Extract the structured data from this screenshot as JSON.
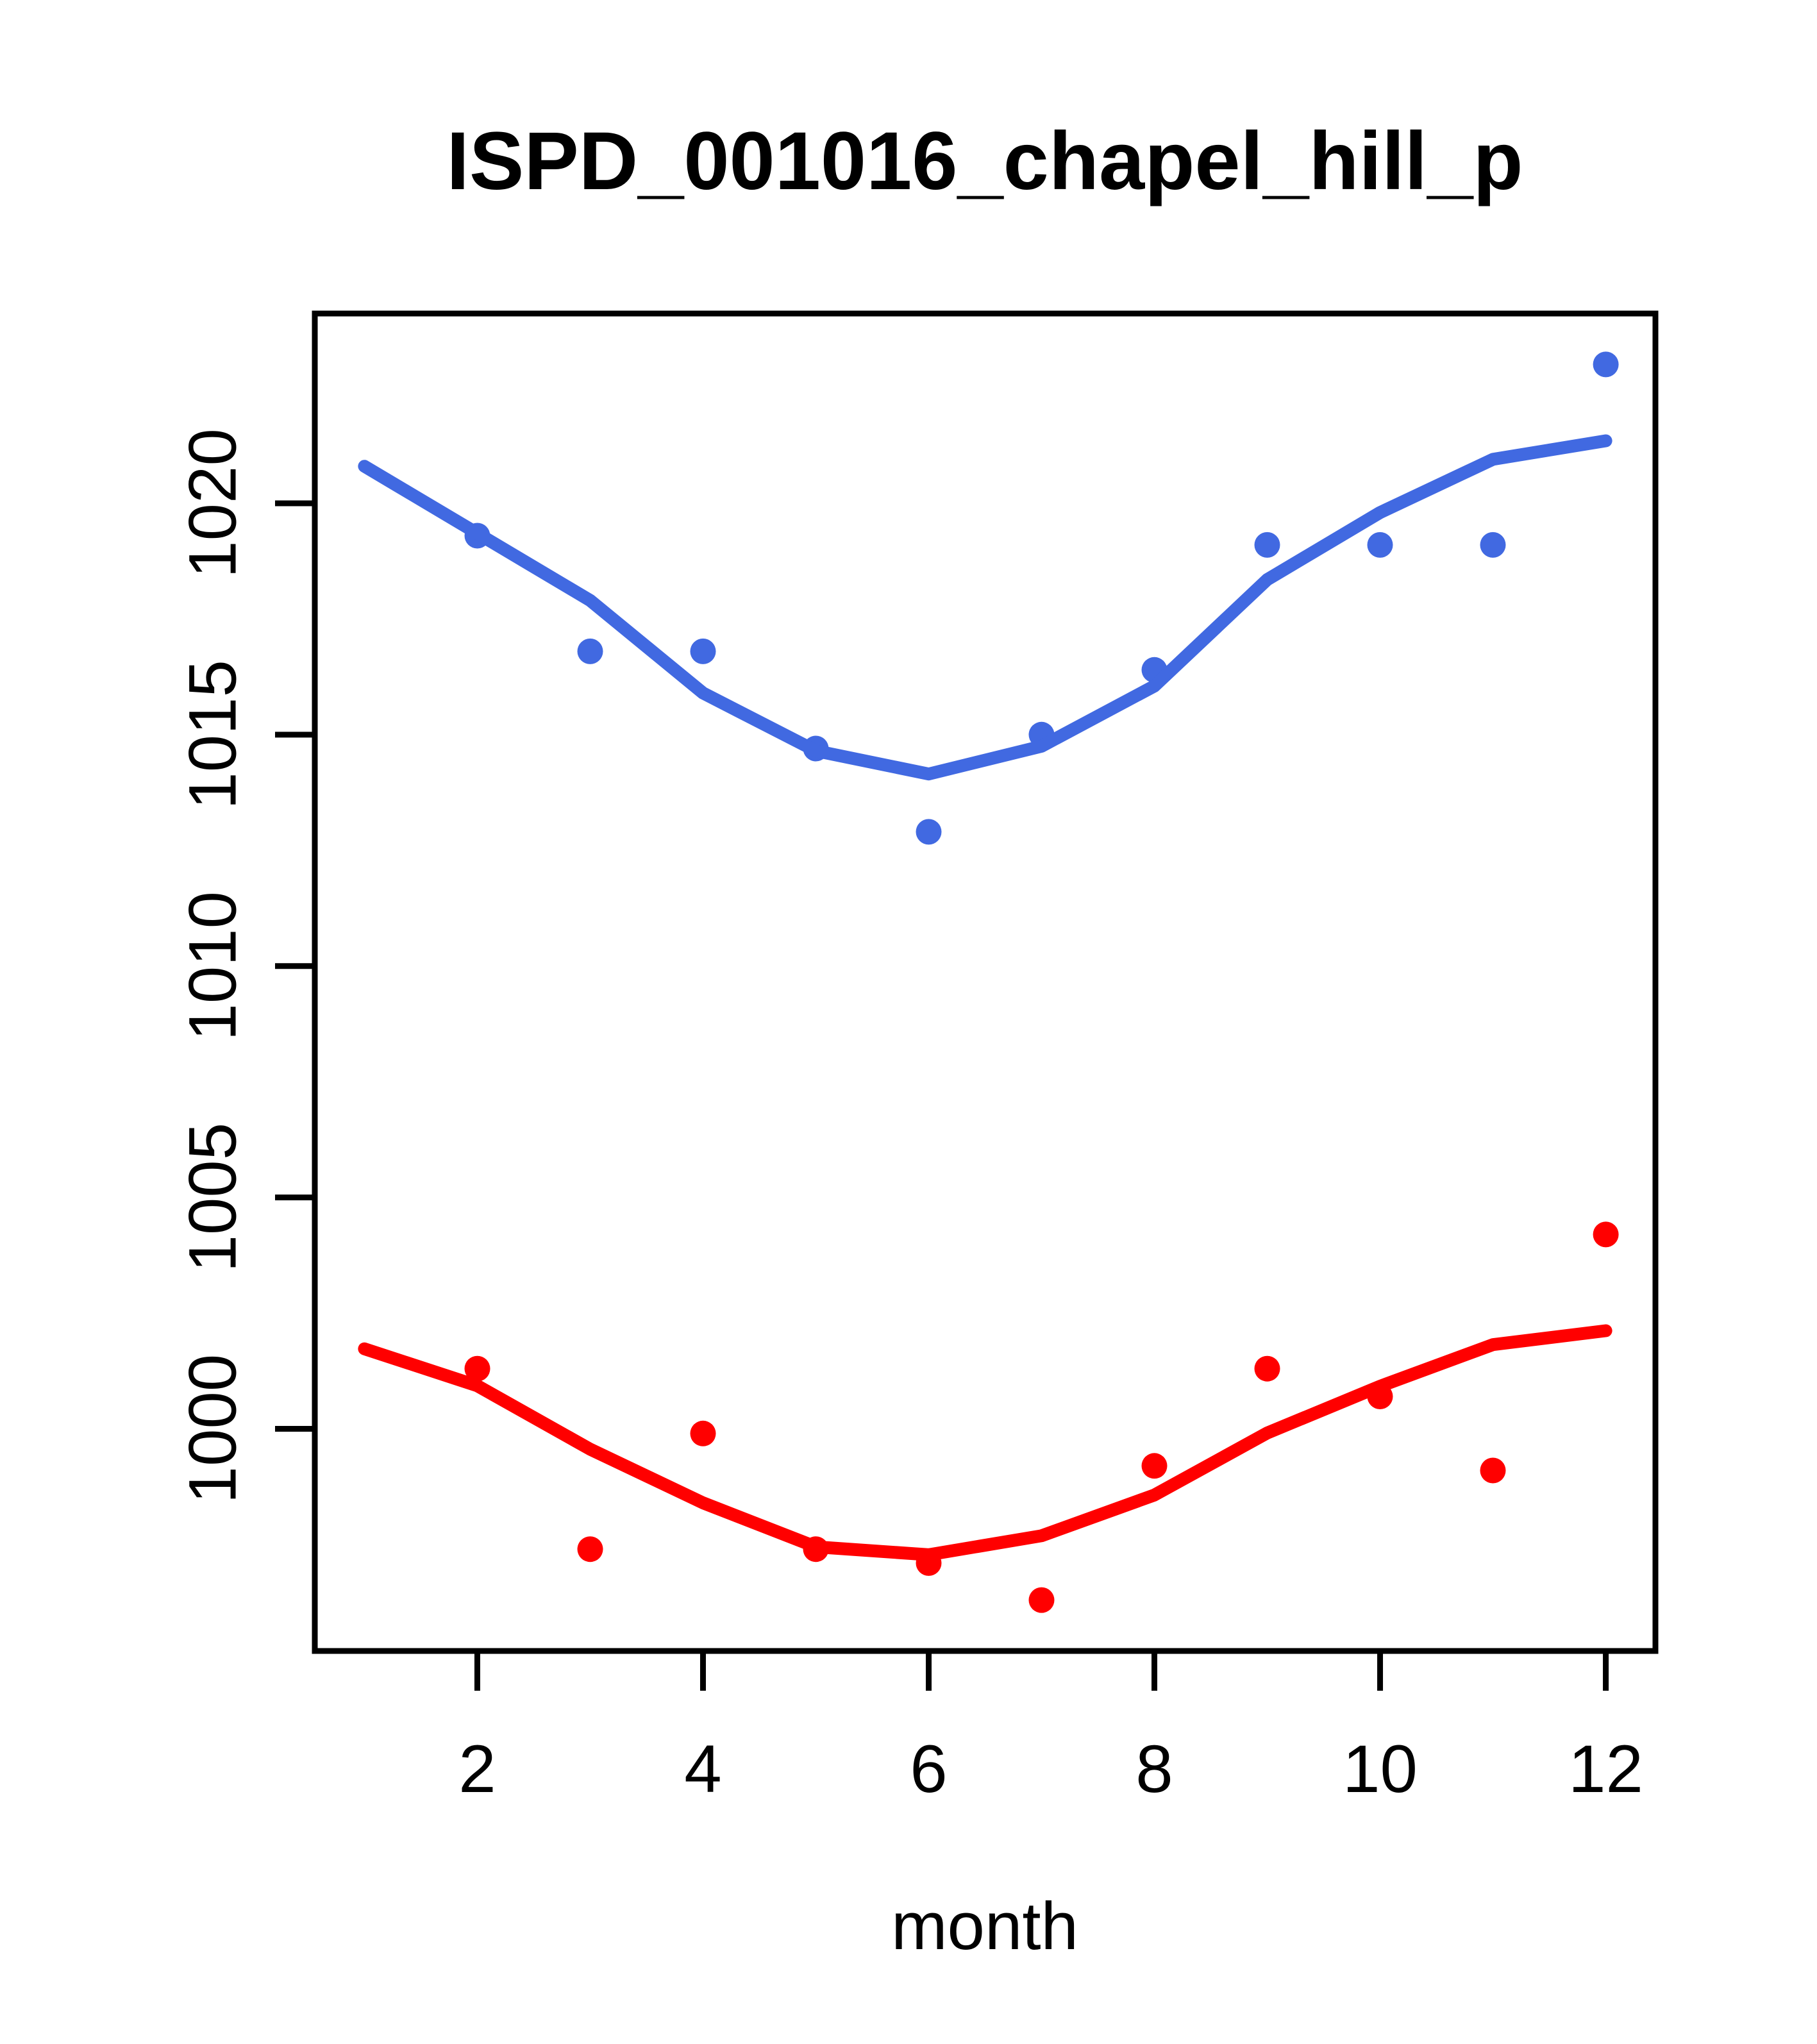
{
  "title": "ISPD_001016_chapel_hill_p",
  "chart_data": {
    "type": "scatter",
    "title": "ISPD_001016_chapel_hill_p",
    "xlabel": "month",
    "ylabel": "",
    "x_ticks": [
      2,
      4,
      6,
      8,
      10,
      12
    ],
    "y_ticks": [
      1000,
      1005,
      1010,
      1015,
      1020
    ],
    "xlim": [
      0.56,
      12.44
    ],
    "ylim": [
      995.2,
      1024.1
    ],
    "grid": false,
    "legend_position": "none",
    "background_color": "#FFFFFF",
    "axis_color": "#000000",
    "accent_blue": "#4169E1",
    "accent_red": "#FF0000",
    "series": [
      {
        "name": "upper-points-blue",
        "kind": "points",
        "color": "#4169E1",
        "x": [
          2,
          3,
          4,
          5,
          6,
          7,
          8,
          9,
          10,
          11,
          12
        ],
        "y": [
          1019.3,
          1016.8,
          1016.8,
          1014.7,
          1012.9,
          1015.0,
          1016.4,
          1019.1,
          1019.1,
          1019.1,
          1023.0
        ]
      },
      {
        "name": "upper-loess-line-blue",
        "kind": "line",
        "color": "#4169E1",
        "x": [
          1,
          2,
          3,
          4,
          5,
          6,
          7,
          8,
          9,
          10,
          11,
          12
        ],
        "y": [
          1020.8,
          1019.35,
          1017.9,
          1015.9,
          1014.65,
          1014.15,
          1014.75,
          1016.05,
          1018.35,
          1019.8,
          1020.95,
          1021.35
        ]
      },
      {
        "name": "lower-points-red",
        "kind": "points",
        "color": "#FF0000",
        "x": [
          2,
          3,
          4,
          5,
          6,
          7,
          8,
          9,
          10,
          11,
          12
        ],
        "y": [
          1001.3,
          997.4,
          999.9,
          997.4,
          997.1,
          996.3,
          999.2,
          1001.3,
          1000.7,
          999.1,
          1004.2
        ]
      },
      {
        "name": "lower-loess-line-red",
        "kind": "line",
        "color": "#FF0000",
        "x": [
          1,
          2,
          3,
          4,
          5,
          6,
          7,
          8,
          9,
          10,
          11,
          12
        ],
        "y": [
          1001.73,
          1000.93,
          999.56,
          998.4,
          997.45,
          997.28,
          997.69,
          998.57,
          999.91,
          1000.92,
          1001.82,
          1002.12
        ]
      }
    ]
  }
}
